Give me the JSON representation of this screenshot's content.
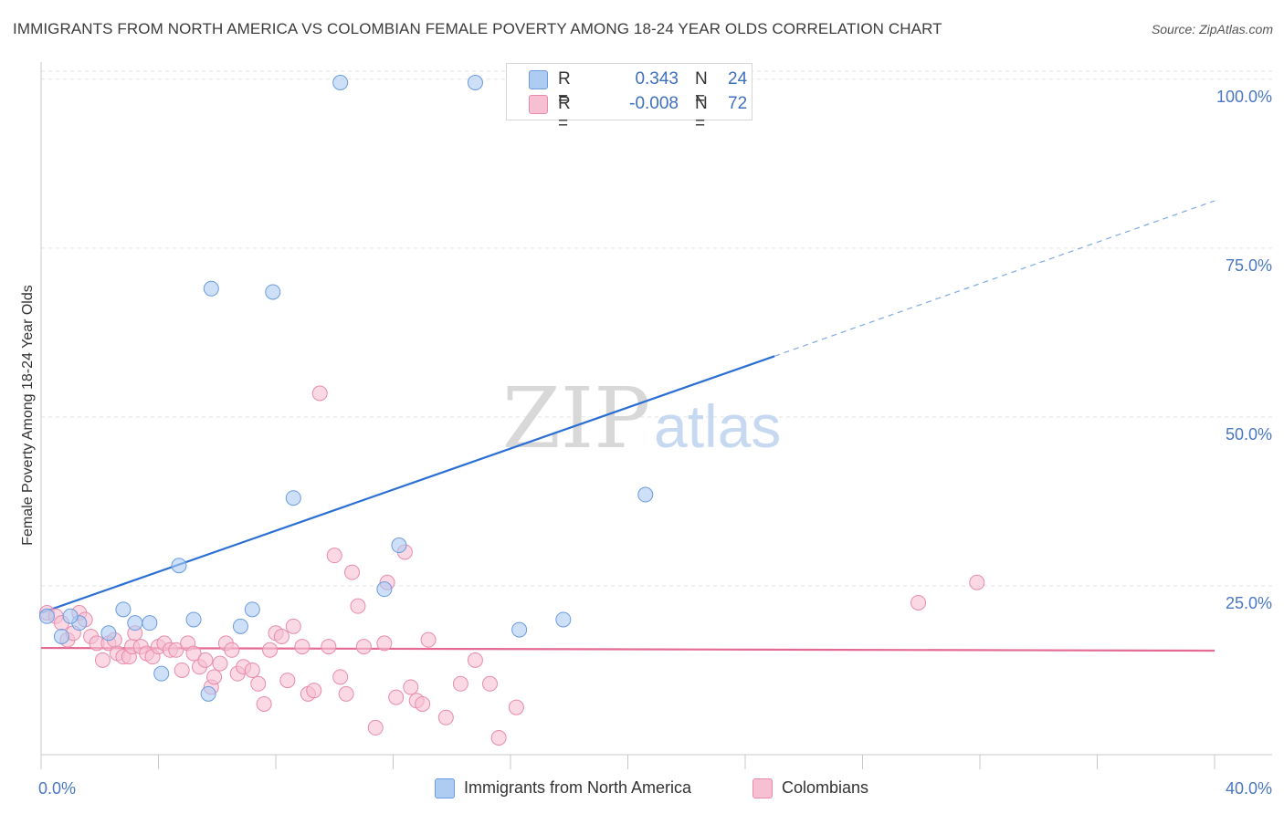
{
  "title": "IMMIGRANTS FROM NORTH AMERICA VS COLOMBIAN FEMALE POVERTY AMONG 18-24 YEAR OLDS CORRELATION CHART",
  "source": "Source: ZipAtlas.com",
  "watermark": {
    "zip": "ZIP",
    "atlas": "atlas"
  },
  "legend": {
    "r_label": "R =",
    "n_label": "N =",
    "rows": [
      {
        "r": "0.343",
        "n": "24",
        "color": "#aecbf2"
      },
      {
        "r": "-0.008",
        "n": "72",
        "color": "#f7bfd2"
      }
    ]
  },
  "bottom_legend": [
    {
      "label": "Immigrants from North America",
      "color": "#aecbf2"
    },
    {
      "label": "Colombians",
      "color": "#f7bfd2"
    }
  ],
  "chart_data": {
    "type": "scatter",
    "title": "IMMIGRANTS FROM NORTH AMERICA VS COLOMBIAN FEMALE POVERTY AMONG 18-24 YEAR OLDS CORRELATION CHART",
    "xlabel": "",
    "ylabel": "Female Poverty Among 18-24 Year Olds",
    "xlim": [
      0,
      40
    ],
    "ylim": [
      0,
      102
    ],
    "x_tick_labels": {
      "0": "0.0%",
      "40": "40.0%"
    },
    "y_ticks": [
      25,
      50,
      75,
      100
    ],
    "y_tick_labels": [
      "25.0%",
      "50.0%",
      "75.0%",
      "100.0%"
    ],
    "series": [
      {
        "name": "Immigrants from North America",
        "color": "#aecbf2",
        "stroke": "#6b9be0",
        "line_color": "#2b6ed4",
        "trend": {
          "x0": 0,
          "y0": 21.0,
          "x1": 25,
          "y1": 59.0,
          "x_ext": 40,
          "y_ext": 82.0
        },
        "points": [
          [
            0.2,
            20.5
          ],
          [
            0.7,
            17.5
          ],
          [
            1.3,
            19.5
          ],
          [
            2.3,
            18.0
          ],
          [
            2.8,
            21.5
          ],
          [
            3.2,
            19.5
          ],
          [
            3.7,
            19.5
          ],
          [
            4.1,
            12.0
          ],
          [
            4.7,
            28.0
          ],
          [
            5.2,
            20.0
          ],
          [
            5.7,
            9.0
          ],
          [
            5.8,
            69.0
          ],
          [
            6.8,
            19.0
          ],
          [
            7.2,
            21.5
          ],
          [
            7.9,
            68.5
          ],
          [
            8.6,
            38.0
          ],
          [
            10.2,
            99.5
          ],
          [
            11.7,
            24.5
          ],
          [
            12.2,
            31.0
          ],
          [
            14.8,
            99.5
          ],
          [
            16.3,
            18.5
          ],
          [
            17.8,
            20.0
          ],
          [
            20.6,
            38.5
          ],
          [
            1.0,
            20.5
          ]
        ]
      },
      {
        "name": "Colombians",
        "color": "#f7bfd2",
        "stroke": "#e88bab",
        "line_color": "#e46a94",
        "trend": {
          "x0": 0,
          "y0": 15.8,
          "x1": 40,
          "y1": 15.4
        },
        "points": [
          [
            0.2,
            21.0
          ],
          [
            0.5,
            20.5
          ],
          [
            0.7,
            19.5
          ],
          [
            0.9,
            17.0
          ],
          [
            1.1,
            18.0
          ],
          [
            1.3,
            21.0
          ],
          [
            1.5,
            20.0
          ],
          [
            1.7,
            17.5
          ],
          [
            1.9,
            16.5
          ],
          [
            2.1,
            14.0
          ],
          [
            2.3,
            16.5
          ],
          [
            2.5,
            17.0
          ],
          [
            2.6,
            15.0
          ],
          [
            2.8,
            14.5
          ],
          [
            3.0,
            14.5
          ],
          [
            3.1,
            16.0
          ],
          [
            3.2,
            18.0
          ],
          [
            3.4,
            16.0
          ],
          [
            3.6,
            15.0
          ],
          [
            3.8,
            14.5
          ],
          [
            4.0,
            16.0
          ],
          [
            4.2,
            16.5
          ],
          [
            4.4,
            15.5
          ],
          [
            4.6,
            15.5
          ],
          [
            4.8,
            12.5
          ],
          [
            5.0,
            16.5
          ],
          [
            5.2,
            15.0
          ],
          [
            5.4,
            13.0
          ],
          [
            5.6,
            14.0
          ],
          [
            5.8,
            10.0
          ],
          [
            5.9,
            11.5
          ],
          [
            6.1,
            13.5
          ],
          [
            6.3,
            16.5
          ],
          [
            6.5,
            15.5
          ],
          [
            6.7,
            12.0
          ],
          [
            6.9,
            13.0
          ],
          [
            7.2,
            12.5
          ],
          [
            7.4,
            10.5
          ],
          [
            7.6,
            7.5
          ],
          [
            7.8,
            15.5
          ],
          [
            8.0,
            18.0
          ],
          [
            8.2,
            17.5
          ],
          [
            8.4,
            11.0
          ],
          [
            8.6,
            19.0
          ],
          [
            8.9,
            16.0
          ],
          [
            9.1,
            9.0
          ],
          [
            9.3,
            9.5
          ],
          [
            9.5,
            53.5
          ],
          [
            9.8,
            16.0
          ],
          [
            10.0,
            29.5
          ],
          [
            10.2,
            11.5
          ],
          [
            10.4,
            9.0
          ],
          [
            10.6,
            27.0
          ],
          [
            10.8,
            22.0
          ],
          [
            11.0,
            16.0
          ],
          [
            11.4,
            4.0
          ],
          [
            11.7,
            16.5
          ],
          [
            11.8,
            25.5
          ],
          [
            12.1,
            8.5
          ],
          [
            12.4,
            30.0
          ],
          [
            12.6,
            10.0
          ],
          [
            12.8,
            8.0
          ],
          [
            13.0,
            7.5
          ],
          [
            13.2,
            17.0
          ],
          [
            13.8,
            5.5
          ],
          [
            14.3,
            10.5
          ],
          [
            14.8,
            14.0
          ],
          [
            15.3,
            10.5
          ],
          [
            15.6,
            2.5
          ],
          [
            16.2,
            7.0
          ],
          [
            29.9,
            22.5
          ],
          [
            31.9,
            25.5
          ]
        ]
      }
    ]
  }
}
